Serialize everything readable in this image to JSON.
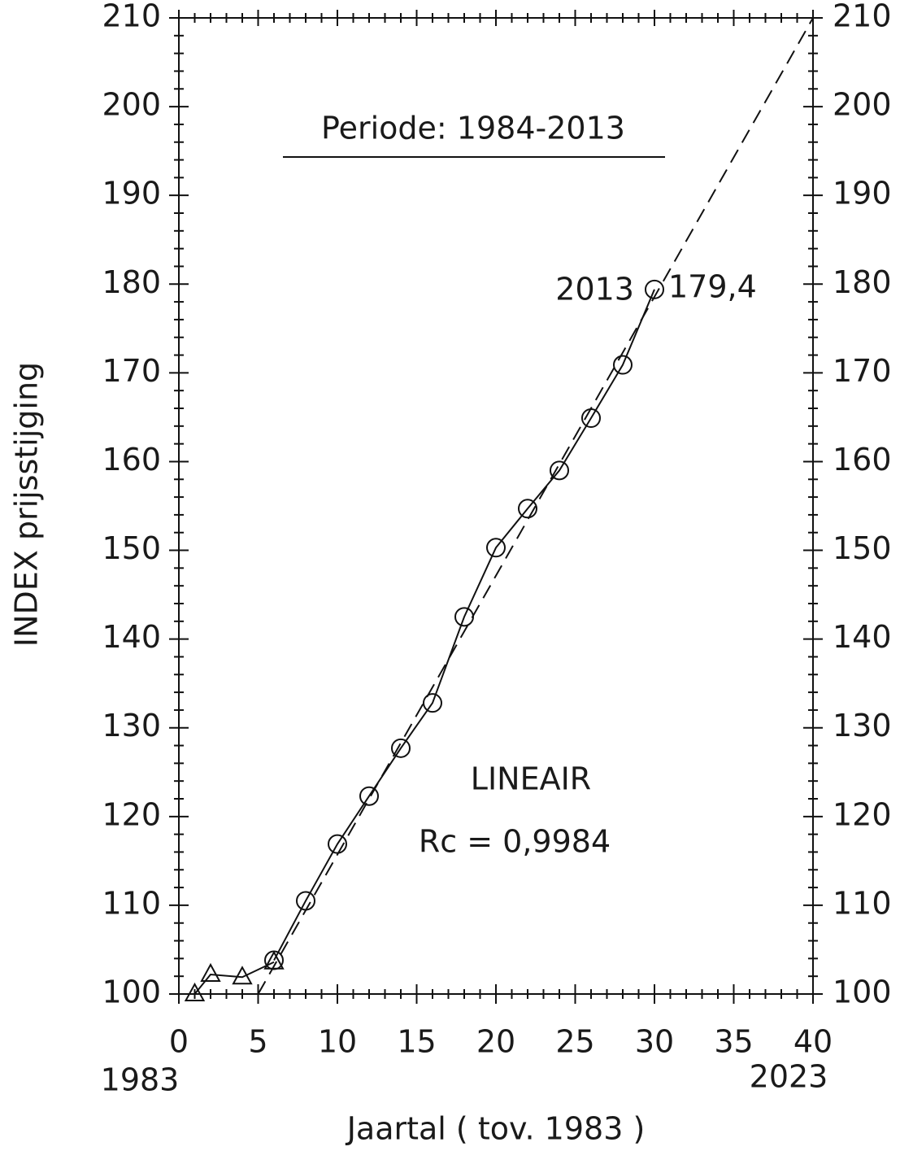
{
  "chart_data": {
    "type": "line",
    "title": "Periode: 1984-2013",
    "x_label": "Jaartal ( tov. 1983 )",
    "y_label": "INDEX prijsstijging",
    "x_secondary_labels": [
      "1983",
      "2023"
    ],
    "annotations": [
      "2013",
      "179,4",
      "LINEAIR",
      "Rc = 0,9984"
    ],
    "xlim": [
      0,
      40
    ],
    "xticks": [
      0,
      5,
      10,
      15,
      20,
      25,
      30,
      35,
      40
    ],
    "xminorticks": [
      1,
      2,
      3,
      4,
      6,
      7,
      8,
      9,
      11,
      12,
      13,
      14,
      16,
      17,
      18,
      19,
      21,
      22,
      23,
      24,
      26,
      27,
      28,
      29,
      31,
      32,
      33,
      34,
      36,
      37,
      38,
      39
    ],
    "ylim": [
      100,
      210
    ],
    "yticks": [
      100,
      110,
      120,
      130,
      140,
      150,
      160,
      170,
      180,
      190,
      200,
      210
    ],
    "yminorticks": [
      102,
      104,
      106,
      108,
      112,
      114,
      116,
      118,
      122,
      124,
      126,
      128,
      132,
      134,
      136,
      138,
      142,
      144,
      146,
      148,
      152,
      154,
      156,
      158,
      162,
      164,
      166,
      168,
      172,
      174,
      176,
      178,
      182,
      184,
      186,
      188,
      192,
      194,
      196,
      198,
      202,
      204,
      206,
      208
    ],
    "y2lim": [
      100,
      210
    ],
    "y2ticks": [
      100,
      110,
      120,
      130,
      140,
      150,
      160,
      170,
      180,
      190,
      200,
      210
    ],
    "series": [
      {
        "marker": "triangle",
        "line": "solid",
        "color": "#111111",
        "x": [
          1,
          2,
          4,
          6
        ],
        "values": [
          100,
          102.2,
          101.9,
          103.6
        ]
      },
      {
        "marker": "circle",
        "line": "solid",
        "color": "#111111",
        "x": [
          6,
          8,
          10,
          12,
          14,
          16,
          18,
          20,
          22,
          24,
          26,
          28,
          30
        ],
        "values": [
          103.8,
          110.5,
          116.9,
          122.3,
          127.7,
          132.8,
          142.5,
          150.3,
          154.7,
          159.0,
          164.9,
          170.9,
          179.4
        ]
      },
      {
        "marker": "none",
        "line": "dashed",
        "color": "#111111",
        "x": [
          5,
          40
        ],
        "values": [
          100,
          210
        ]
      }
    ]
  }
}
